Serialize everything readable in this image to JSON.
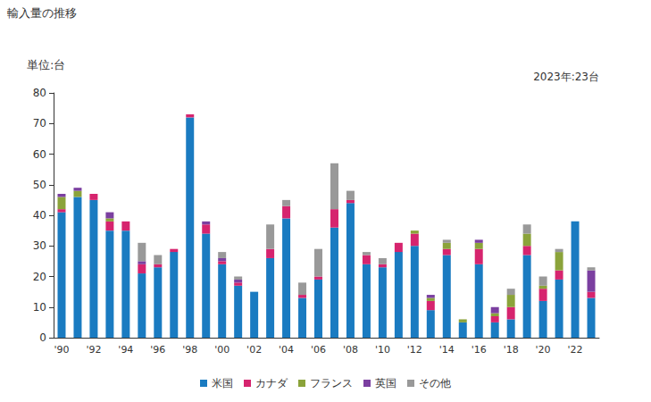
{
  "chart_data": {
    "type": "bar",
    "title": "輸入量の推移",
    "ylabel": "単位:台",
    "annotations": [
      "2023年:23台"
    ],
    "categories": [
      "'90",
      null,
      "'92",
      null,
      "'94",
      null,
      "'96",
      null,
      "'98",
      null,
      "'00",
      null,
      "'02",
      null,
      "'04",
      null,
      "'06",
      null,
      "'08",
      null,
      "'10",
      null,
      "'12",
      null,
      "'14",
      null,
      "'16",
      null,
      "'18",
      null,
      "'20",
      null,
      "'22",
      null
    ],
    "series": [
      {
        "name": "米国",
        "color": "#1a7bc1",
        "values": [
          41,
          46,
          45,
          35,
          35,
          21,
          23,
          28,
          72,
          34,
          24,
          17,
          15,
          26,
          39,
          13,
          19,
          36,
          44,
          24,
          23,
          28,
          30,
          9,
          27,
          5,
          24,
          5,
          6,
          27,
          12,
          19,
          38,
          13
        ]
      },
      {
        "name": "カナダ",
        "color": "#d6246e",
        "values": [
          1,
          0,
          2,
          3,
          3,
          3,
          1,
          1,
          1,
          3,
          1,
          1,
          0,
          3,
          4,
          1,
          1,
          6,
          1,
          3,
          1,
          3,
          4,
          3,
          2,
          0,
          5,
          2,
          4,
          3,
          4,
          3,
          0,
          2
        ]
      },
      {
        "name": "フランス",
        "color": "#8ba33a",
        "values": [
          4,
          2,
          0,
          1,
          0,
          0,
          0,
          0,
          0,
          0,
          0,
          0,
          0,
          0,
          0,
          0,
          0,
          0,
          0,
          0,
          0,
          0,
          1,
          1,
          2,
          1,
          2,
          1,
          4,
          4,
          1,
          6,
          0,
          0
        ]
      },
      {
        "name": "英国",
        "color": "#7b3fa0",
        "values": [
          1,
          1,
          0,
          2,
          0,
          1,
          0,
          0,
          0,
          1,
          1,
          1,
          0,
          0,
          0,
          0,
          0,
          0,
          0,
          0,
          0,
          0,
          0,
          1,
          0,
          0,
          1,
          2,
          0,
          0,
          0,
          0,
          0,
          7
        ]
      },
      {
        "name": "その他",
        "color": "#999999",
        "values": [
          0,
          0,
          0,
          0,
          0,
          6,
          3,
          0,
          0,
          0,
          2,
          1,
          0,
          8,
          2,
          4,
          9,
          15,
          3,
          1,
          2,
          0,
          0,
          0,
          1,
          0,
          0,
          0,
          2,
          3,
          3,
          1,
          0,
          1
        ]
      }
    ],
    "ylim": [
      0,
      80
    ],
    "yticks": [
      0,
      10,
      20,
      30,
      40,
      50,
      60,
      70,
      80
    ],
    "stacked": true,
    "grid": false,
    "legend": "bottom"
  }
}
